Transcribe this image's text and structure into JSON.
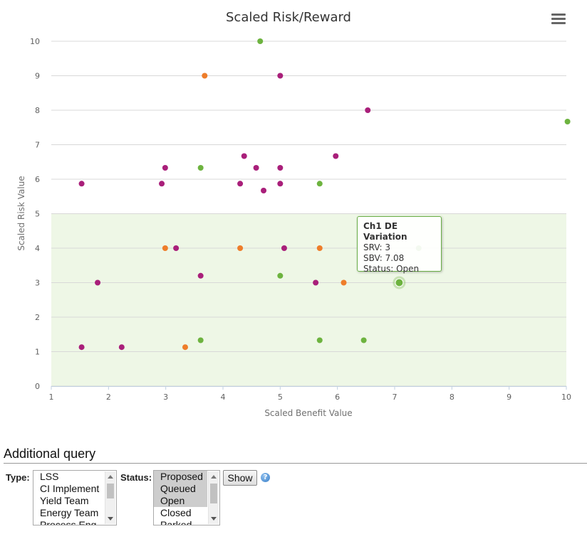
{
  "chart_data": {
    "type": "scatter",
    "title": "Scaled Risk/Reward",
    "xlabel": "Scaled Benefit Value",
    "ylabel": "Scaled Risk Value",
    "xlim": [
      1,
      10
    ],
    "ylim": [
      0,
      10
    ],
    "x_ticks": [
      1,
      2,
      3,
      4,
      5,
      6,
      7,
      8,
      9,
      10
    ],
    "y_ticks": [
      0,
      1,
      2,
      3,
      4,
      5,
      6,
      7,
      8,
      9,
      10
    ],
    "grid": true,
    "highlight_band": {
      "y_from": 0,
      "y_to": 5,
      "color": "#eef7e6"
    },
    "colors": {
      "purple": "#a91f7a",
      "orange": "#ee7d2a",
      "green": "#6db33f"
    },
    "points": [
      {
        "x": 4.65,
        "y": 10,
        "c": "green"
      },
      {
        "x": 3.68,
        "y": 9,
        "c": "orange"
      },
      {
        "x": 5.0,
        "y": 9,
        "c": "purple"
      },
      {
        "x": 6.53,
        "y": 8,
        "c": "purple"
      },
      {
        "x": 10.02,
        "y": 7.67,
        "c": "green"
      },
      {
        "x": 4.37,
        "y": 6.67,
        "c": "purple"
      },
      {
        "x": 5.97,
        "y": 6.67,
        "c": "purple"
      },
      {
        "x": 2.99,
        "y": 6.33,
        "c": "purple"
      },
      {
        "x": 3.61,
        "y": 6.33,
        "c": "green"
      },
      {
        "x": 4.58,
        "y": 6.33,
        "c": "purple"
      },
      {
        "x": 5.0,
        "y": 6.33,
        "c": "purple"
      },
      {
        "x": 1.53,
        "y": 5.87,
        "c": "purple"
      },
      {
        "x": 2.93,
        "y": 5.87,
        "c": "purple"
      },
      {
        "x": 4.3,
        "y": 5.87,
        "c": "purple"
      },
      {
        "x": 5.0,
        "y": 5.87,
        "c": "purple"
      },
      {
        "x": 5.69,
        "y": 5.87,
        "c": "green"
      },
      {
        "x": 4.71,
        "y": 5.67,
        "c": "purple"
      },
      {
        "x": 2.99,
        "y": 4,
        "c": "orange"
      },
      {
        "x": 3.18,
        "y": 4,
        "c": "purple"
      },
      {
        "x": 4.3,
        "y": 4,
        "c": "orange"
      },
      {
        "x": 5.07,
        "y": 4,
        "c": "purple"
      },
      {
        "x": 5.69,
        "y": 4,
        "c": "orange"
      },
      {
        "x": 7.42,
        "y": 4,
        "c": "green"
      },
      {
        "x": 3.61,
        "y": 3.2,
        "c": "purple"
      },
      {
        "x": 5.0,
        "y": 3.2,
        "c": "green"
      },
      {
        "x": 1.81,
        "y": 3,
        "c": "purple"
      },
      {
        "x": 5.62,
        "y": 3,
        "c": "purple"
      },
      {
        "x": 6.11,
        "y": 3,
        "c": "orange"
      },
      {
        "x": 7.08,
        "y": 3,
        "c": "green",
        "hover": true
      },
      {
        "x": 3.61,
        "y": 1.33,
        "c": "green"
      },
      {
        "x": 5.69,
        "y": 1.33,
        "c": "green"
      },
      {
        "x": 6.46,
        "y": 1.33,
        "c": "green"
      },
      {
        "x": 1.53,
        "y": 1.13,
        "c": "purple"
      },
      {
        "x": 2.23,
        "y": 1.13,
        "c": "purple"
      },
      {
        "x": 3.34,
        "y": 1.13,
        "c": "orange"
      }
    ],
    "tooltip": {
      "title": "Ch1 DE Variation",
      "srv": "SRV: 3",
      "sbv": "SBV: 7.08",
      "status": "Status: Open"
    }
  },
  "menu_icon": "hamburger-menu-icon",
  "query": {
    "title": "Additional query",
    "type_label": "Type:",
    "type_options": [
      {
        "label": "LSS",
        "selected": false
      },
      {
        "label": "CI Implement",
        "selected": false
      },
      {
        "label": "Yield Team",
        "selected": false
      },
      {
        "label": "Energy Team",
        "selected": false
      },
      {
        "label": "Process Eng",
        "selected": false
      }
    ],
    "status_label": "Status:",
    "status_options": [
      {
        "label": "Proposed",
        "selected": true
      },
      {
        "label": "Queued",
        "selected": true
      },
      {
        "label": "Open",
        "selected": true
      },
      {
        "label": "Closed",
        "selected": false
      },
      {
        "label": "Parked",
        "selected": false
      }
    ],
    "show_label": "Show",
    "help_icon": "help-icon",
    "help_glyph": "?"
  }
}
